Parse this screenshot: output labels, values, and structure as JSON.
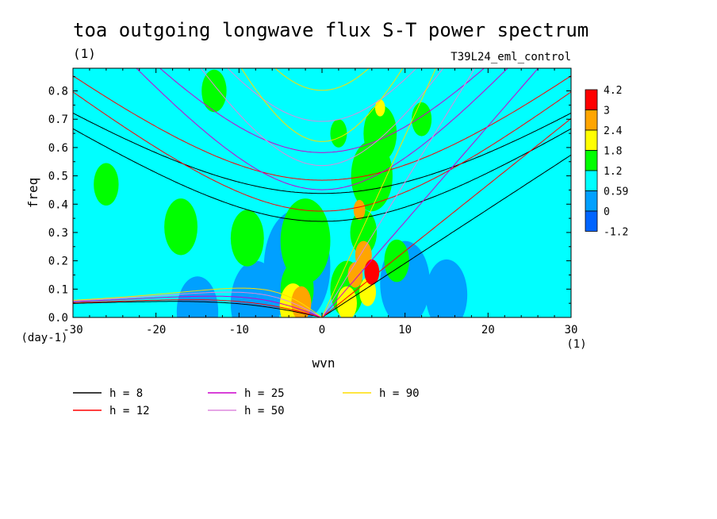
{
  "chart_data": {
    "type": "heatmap",
    "title": "toa outgoing longwave flux S-T power spectrum",
    "subtitle": "(1)",
    "run_label": "T39L24_eml_control",
    "xlabel": "wvn",
    "x_unit": "(1)",
    "ylabel": "freq",
    "y_unit": "(day-1)",
    "xlim": [
      -30,
      30
    ],
    "ylim": [
      0,
      0.88
    ],
    "x_ticks": [
      "-30",
      "-20",
      "-10",
      "0",
      "10",
      "20",
      "30"
    ],
    "x_tick_values": [
      -30,
      -20,
      -10,
      0,
      10,
      20,
      30
    ],
    "y_ticks": [
      "0.0",
      "0.1",
      "0.2",
      "0.3",
      "0.4",
      "0.5",
      "0.6",
      "0.7",
      "0.8"
    ],
    "y_tick_values": [
      0,
      0.1,
      0.2,
      0.3,
      0.4,
      0.5,
      0.6,
      0.7,
      0.8
    ],
    "colorbar": {
      "labels": [
        "4.2",
        "3",
        "2.4",
        "1.8",
        "1.2",
        "0.59",
        "0",
        "-1.2"
      ],
      "colors": [
        "#ff0000",
        "#ffa500",
        "#ffff00",
        "#00ff00",
        "#00ffff",
        "#00a0ff",
        "#0064ff"
      ]
    },
    "background_color": "#00ffff",
    "series": [
      {
        "name": "h =  8",
        "h": 8,
        "color": "#000000"
      },
      {
        "name": "h = 12",
        "h": 12,
        "color": "#ff0000"
      },
      {
        "name": "h = 25",
        "h": 25,
        "color": "#cc00cc"
      },
      {
        "name": "h = 50",
        "h": 50,
        "color": "#dd88dd"
      },
      {
        "name": "h = 90",
        "h": 90,
        "color": "#ffdd00"
      }
    ],
    "blobs": [
      {
        "x": 6,
        "y": 0.16,
        "r": 0.9,
        "level": 6
      },
      {
        "x": 5,
        "y": 0.22,
        "r": 1.0,
        "level": 5
      },
      {
        "x": 4,
        "y": 0.15,
        "r": 0.9,
        "level": 5
      },
      {
        "x": 4.5,
        "y": 0.38,
        "r": 0.7,
        "level": 5
      },
      {
        "x": 7,
        "y": 0.74,
        "r": 0.6,
        "level": 4
      },
      {
        "x": -2.5,
        "y": 0.05,
        "r": 1.2,
        "level": 5
      },
      {
        "x": 3,
        "y": 0.05,
        "r": 1.2,
        "level": 4
      },
      {
        "x": -3.5,
        "y": 0.04,
        "r": 1.6,
        "level": 4
      },
      {
        "x": 5.5,
        "y": 0.09,
        "r": 1.0,
        "level": 4
      },
      {
        "x": 6,
        "y": 0.5,
        "r": 2.5,
        "level": 3
      },
      {
        "x": 7,
        "y": 0.65,
        "r": 2.0,
        "level": 3
      },
      {
        "x": 5,
        "y": 0.3,
        "r": 1.6,
        "level": 3
      },
      {
        "x": 3,
        "y": 0.1,
        "r": 2.0,
        "level": 3
      },
      {
        "x": -3,
        "y": 0.1,
        "r": 2.0,
        "level": 3
      },
      {
        "x": -2,
        "y": 0.27,
        "r": 3.0,
        "level": 3
      },
      {
        "x": -9,
        "y": 0.28,
        "r": 2.0,
        "level": 3
      },
      {
        "x": -17,
        "y": 0.32,
        "r": 2.0,
        "level": 3
      },
      {
        "x": -26,
        "y": 0.47,
        "r": 1.5,
        "level": 3
      },
      {
        "x": -13,
        "y": 0.8,
        "r": 1.5,
        "level": 3
      },
      {
        "x": 9,
        "y": 0.2,
        "r": 1.5,
        "level": 3
      },
      {
        "x": 12,
        "y": 0.7,
        "r": 1.2,
        "level": 3
      },
      {
        "x": 2,
        "y": 0.65,
        "r": 1.0,
        "level": 3
      },
      {
        "x": -8,
        "y": 0.05,
        "r": 3.0,
        "level": 1
      },
      {
        "x": -3,
        "y": 0.18,
        "r": 4.0,
        "level": 1
      },
      {
        "x": 10,
        "y": 0.12,
        "r": 3.0,
        "level": 1
      },
      {
        "x": 15,
        "y": 0.08,
        "r": 2.5,
        "level": 1
      },
      {
        "x": -15,
        "y": 0.02,
        "r": 2.5,
        "level": 1
      }
    ]
  }
}
